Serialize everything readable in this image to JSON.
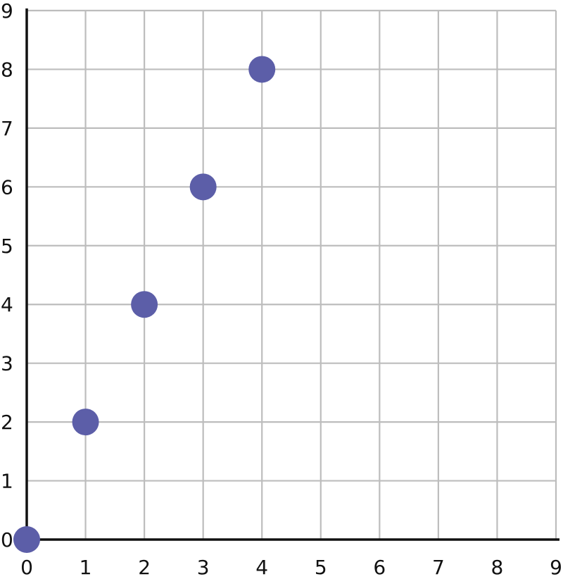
{
  "chart_data": {
    "type": "scatter",
    "title": "",
    "xlabel": "",
    "ylabel": "",
    "xlim": [
      0,
      9
    ],
    "ylim": [
      0,
      9
    ],
    "grid": true,
    "x_ticks": [
      "0",
      "1",
      "2",
      "3",
      "4",
      "5",
      "6",
      "7",
      "8",
      "9"
    ],
    "y_ticks": [
      "0",
      "1",
      "2",
      "3",
      "4",
      "5",
      "6",
      "7",
      "8",
      "9"
    ],
    "series": [
      {
        "x": [
          0,
          1,
          2,
          3,
          4
        ],
        "y": [
          0,
          2,
          4,
          6,
          8
        ]
      }
    ],
    "colors": {
      "point": "#5c5ea8",
      "grid": "#bdbdbd",
      "axis": "#111111"
    }
  }
}
